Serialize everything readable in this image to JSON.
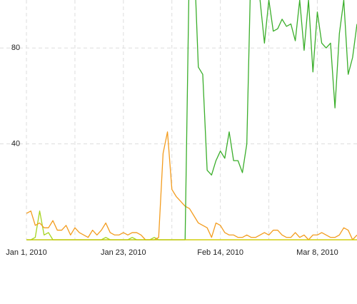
{
  "chart_data": {
    "type": "line",
    "x": [
      "2010-01-01",
      "2010-01-02",
      "2010-01-03",
      "2010-01-04",
      "2010-01-05",
      "2010-01-06",
      "2010-01-07",
      "2010-01-08",
      "2010-01-09",
      "2010-01-10",
      "2010-01-11",
      "2010-01-12",
      "2010-01-13",
      "2010-01-14",
      "2010-01-15",
      "2010-01-16",
      "2010-01-17",
      "2010-01-18",
      "2010-01-19",
      "2010-01-20",
      "2010-01-21",
      "2010-01-22",
      "2010-01-23",
      "2010-01-24",
      "2010-01-25",
      "2010-01-26",
      "2010-01-27",
      "2010-01-28",
      "2010-01-29",
      "2010-01-30",
      "2010-01-31",
      "2010-02-01",
      "2010-02-02",
      "2010-02-03",
      "2010-02-04",
      "2010-02-05",
      "2010-02-06",
      "2010-02-07",
      "2010-02-08",
      "2010-02-09",
      "2010-02-10",
      "2010-02-11",
      "2010-02-12",
      "2010-02-13",
      "2010-02-14",
      "2010-02-15",
      "2010-02-16",
      "2010-02-17",
      "2010-02-18",
      "2010-02-19",
      "2010-02-20",
      "2010-02-21",
      "2010-02-22",
      "2010-02-23",
      "2010-02-24",
      "2010-02-25",
      "2010-02-26",
      "2010-02-27",
      "2010-02-28",
      "2010-03-01",
      "2010-03-02",
      "2010-03-03",
      "2010-03-04",
      "2010-03-05",
      "2010-03-06",
      "2010-03-07",
      "2010-03-08",
      "2010-03-09",
      "2010-03-10",
      "2010-03-11",
      "2010-03-12",
      "2010-03-13",
      "2010-03-14",
      "2010-03-15",
      "2010-03-16",
      "2010-03-17"
    ],
    "series": [
      {
        "color": "#a6d41e",
        "values": [
          0,
          0,
          1,
          12,
          2,
          3,
          0,
          0,
          0,
          0,
          0,
          0,
          0,
          0,
          0,
          0,
          0,
          0,
          1,
          0,
          0,
          0,
          0,
          0,
          1,
          0,
          0,
          0,
          0,
          1,
          0,
          0,
          0,
          0,
          0,
          0,
          0,
          0,
          0,
          0,
          0,
          0,
          0,
          0,
          0,
          0,
          0,
          0,
          0,
          0,
          0,
          0,
          0,
          0,
          0,
          0,
          0,
          0,
          0,
          0,
          0,
          0,
          0,
          0,
          0,
          0,
          0,
          0,
          0,
          0,
          0,
          0,
          0,
          0,
          0,
          0
        ]
      },
      {
        "color": "#f39c1e",
        "values": [
          11,
          12,
          6,
          7,
          5,
          5,
          8,
          4,
          4,
          6,
          2,
          5,
          3,
          2,
          1,
          4,
          2,
          4,
          7,
          3,
          2,
          2,
          3,
          2,
          3,
          3,
          2,
          0,
          0,
          0,
          1,
          36,
          45,
          21,
          18,
          16,
          14,
          13,
          10,
          7,
          6,
          5,
          1,
          7,
          6,
          3,
          2,
          2,
          1,
          1,
          2,
          1,
          1,
          2,
          3,
          2,
          4,
          4,
          2,
          1,
          1,
          3,
          1,
          2,
          0,
          2,
          2,
          3,
          2,
          1,
          1,
          2,
          5,
          4,
          0,
          2
        ]
      },
      {
        "color": "#3aae2a",
        "values": [
          0,
          0,
          0,
          0,
          0,
          0,
          0,
          0,
          0,
          0,
          0,
          0,
          0,
          0,
          0,
          0,
          0,
          0,
          0,
          0,
          0,
          0,
          0,
          0,
          0,
          0,
          0,
          0,
          0,
          0,
          0,
          0,
          0,
          0,
          0,
          0,
          0,
          120,
          120,
          72,
          69,
          29,
          27,
          33,
          37,
          34,
          45,
          33,
          33,
          28,
          40,
          120,
          120,
          100,
          82,
          100,
          87,
          88,
          92,
          89,
          90,
          83,
          100,
          79,
          100,
          70,
          95,
          82,
          80,
          82,
          55,
          86,
          100,
          69,
          76,
          90
        ]
      },
      {
        "color": "#d6cc00",
        "values": [
          0,
          0,
          0,
          0,
          0,
          0,
          0,
          0,
          0,
          0,
          0,
          0,
          0,
          0,
          0,
          0,
          0,
          0,
          0,
          0,
          0,
          0,
          0,
          0,
          0,
          0,
          0,
          0,
          0,
          0,
          0,
          0,
          0,
          0,
          0,
          0,
          0,
          0,
          0,
          0,
          0,
          0,
          0,
          0,
          0,
          0,
          0,
          0,
          0,
          0,
          0,
          0,
          0,
          0,
          0,
          0,
          0,
          0,
          0,
          0,
          0,
          0,
          0,
          0,
          0,
          0,
          0,
          0,
          0,
          0,
          0,
          0,
          0,
          0,
          0,
          0
        ]
      }
    ],
    "xlim": [
      "2009-12-26",
      "2010-03-17"
    ],
    "xticks": [
      {
        "value": "2010-01-01",
        "label": "Jan 1, 2010"
      },
      {
        "value": "2010-01-23",
        "label": "Jan 23, 2010"
      },
      {
        "value": "2010-02-14",
        "label": "Feb 14, 2010"
      },
      {
        "value": "2010-03-08",
        "label": "Mar 8, 2010"
      }
    ],
    "xminorticks": [
      "2010-01-12",
      "2010-02-03",
      "2010-02-25"
    ],
    "ylim": [
      0,
      100
    ],
    "yticks": [
      40,
      80
    ],
    "grid": true
  }
}
